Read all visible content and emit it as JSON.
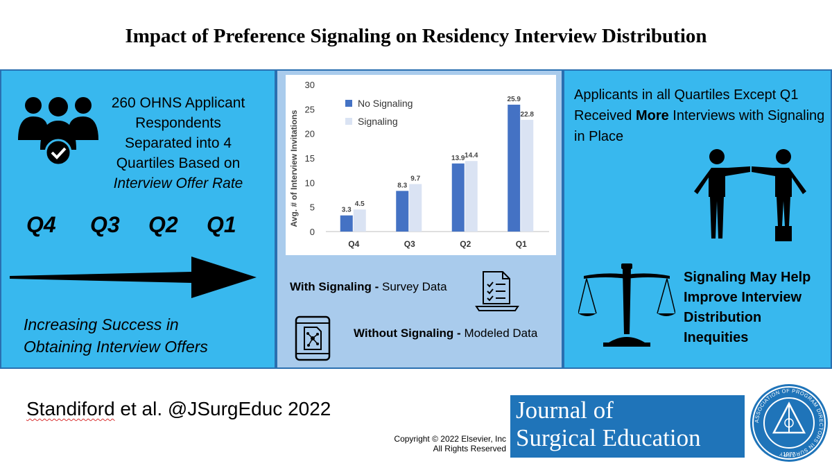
{
  "title": "Impact of Preference Signaling on Residency Interview Distribution",
  "left_panel": {
    "respondents_line1": "260 OHNS Applicant",
    "respondents_line2": "Respondents",
    "respondents_line3": "Separated into 4",
    "respondents_line4": "Quartiles Based on",
    "respondents_line5": "Interview Offer Rate",
    "quartiles": [
      "Q4",
      "Q3",
      "Q2",
      "Q1"
    ],
    "success_line1": "Increasing Success in",
    "success_line2": "Obtaining Interview Offers",
    "icons": [
      "user-group-check-icon",
      "right-arrow-icon"
    ]
  },
  "middle_panel": {
    "with_label": "With Signaling -",
    "with_desc": "Survey Data",
    "without_label": "Without Signaling -",
    "without_desc": "Modeled Data",
    "icons": [
      "survey-laptop-icon",
      "tablet-network-icon"
    ]
  },
  "right_panel": {
    "result_pre": "Applicants in all Quartiles Except Q1 Received ",
    "result_bold": "More",
    "result_post": " Interviews with Signaling in Place",
    "conclusion": "Signaling May Help Improve Interview Distribution Inequities",
    "icons": [
      "equity-people-icon",
      "balance-scale-icon"
    ]
  },
  "footer": {
    "citation_author": "Standiford",
    "citation_rest": " et al. @JSurgEduc 2022",
    "copyright_line1": "Copyright © 2022  Elsevier, Inc",
    "copyright_line2": "All Rights Reserved",
    "journal_line1": "Journal of",
    "journal_line2": "Surgical Education",
    "seal_year": "1977",
    "seal_ring_text": "ASSOCIATION OF PROGRAM DIRECTORS IN SURGERY"
  },
  "chart_data": {
    "type": "bar",
    "categories": [
      "Q4",
      "Q3",
      "Q2",
      "Q1"
    ],
    "series": [
      {
        "name": "No Signaling",
        "values": [
          3.3,
          8.3,
          13.9,
          25.9
        ],
        "color": "#4472c4"
      },
      {
        "name": "Signaling",
        "values": [
          4.5,
          9.7,
          14.4,
          22.8
        ],
        "color": "#dae3f3"
      }
    ],
    "ylabel": "Avg. # of Interview Invitations",
    "yticks": [
      0,
      5,
      10,
      15,
      20,
      25,
      30
    ],
    "ylim": [
      0,
      30
    ],
    "legend": "top-left"
  }
}
